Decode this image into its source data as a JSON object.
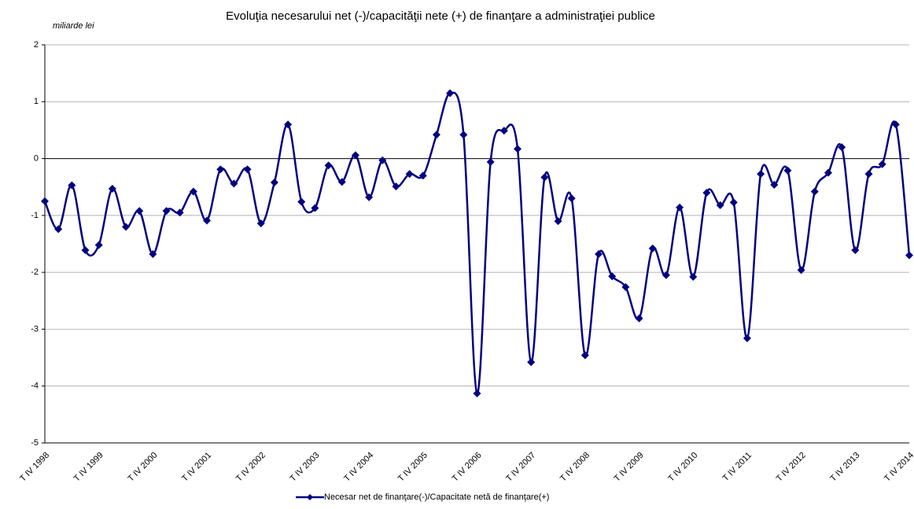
{
  "chart_data": {
    "type": "line",
    "title": "Evoluţia necesarului net (-)/capacităţii nete (+) de finanţare a administraţiei publice",
    "y_label": "miliarde lei",
    "categories": [
      "T IV 1998",
      null,
      null,
      null,
      "T IV 1999",
      null,
      null,
      null,
      "T IV 2000",
      null,
      null,
      null,
      "T IV 2001",
      null,
      null,
      null,
      "T IV 2002",
      null,
      null,
      null,
      "T IV 2003",
      null,
      null,
      null,
      "T IV 2004",
      null,
      null,
      null,
      "T IV 2005",
      null,
      null,
      null,
      "T IV 2006",
      null,
      null,
      null,
      "T IV 2007",
      null,
      null,
      null,
      "T IV 2008",
      null,
      null,
      null,
      "T IV 2009",
      null,
      null,
      null,
      "T IV 2010",
      null,
      null,
      null,
      "T IV 2011",
      null,
      null,
      null,
      "T IV 2012",
      null,
      null,
      null,
      "T IV 2013",
      null,
      null,
      null,
      "T IV 2014"
    ],
    "series": [
      {
        "name": "Necesar net de finanţare(-)/Capacitate netă de finanţare(+)",
        "color": "#000080",
        "values": [
          -0.75,
          -1.24,
          -0.47,
          -1.61,
          -1.52,
          -0.53,
          -1.2,
          -0.92,
          -1.68,
          -0.92,
          -0.95,
          -0.58,
          -1.09,
          -0.19,
          -0.44,
          -0.19,
          -1.14,
          -0.42,
          0.6,
          -0.76,
          -0.87,
          -0.12,
          -0.41,
          0.06,
          -0.68,
          -0.03,
          -0.49,
          -0.27,
          -0.3,
          0.42,
          1.15,
          0.42,
          -4.13,
          -0.06,
          0.49,
          0.17,
          -3.58,
          -0.33,
          -1.1,
          -0.7,
          -3.46,
          -1.68,
          -2.07,
          -2.26,
          -2.81,
          -1.58,
          -2.05,
          -0.86,
          -2.08,
          -0.6,
          -0.82,
          -0.77,
          -3.16,
          -0.27,
          -0.46,
          -0.21,
          -1.96,
          -0.58,
          -0.25,
          0.2,
          -1.61,
          -0.27,
          -0.1,
          0.6,
          -1.7
        ]
      }
    ],
    "ylim": [
      -5,
      2
    ],
    "yticks": [
      -5,
      -4,
      -3,
      -2,
      -1,
      0,
      1,
      2
    ],
    "grid": true,
    "legend": "bottom"
  }
}
